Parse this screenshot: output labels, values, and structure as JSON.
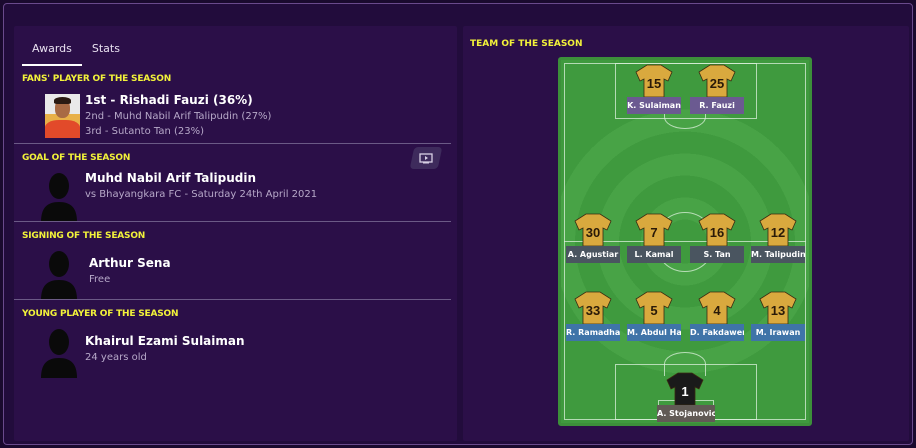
{
  "tabs": [
    {
      "label": "Awards",
      "active": true
    },
    {
      "label": "Stats",
      "active": false
    }
  ],
  "fans": {
    "title": "FANS' PLAYER OF THE SEASON",
    "first": "1st - Rishadi Fauzi (36%)",
    "second": "2nd - Muhd Nabil Arif Talipudin (27%)",
    "third": "3rd - Sutanto Tan (23%)"
  },
  "goal": {
    "title": "GOAL OF THE SEASON",
    "player": "Muhd Nabil Arif Talipudin",
    "detail": "vs Bhayangkara FC - Saturday 24th April 2021",
    "icon": "tv-play-icon"
  },
  "signing": {
    "title": "SIGNING OF THE SEASON",
    "player": "Arthur Sena",
    "detail": "Free"
  },
  "young": {
    "title": "YOUNG PLAYER OF THE SEASON",
    "player": "Khairul Ezami Sulaiman",
    "detail": "24 years old"
  },
  "team": {
    "title": "TEAM OF THE SEASON",
    "colors": {
      "striker": "#6b5a91",
      "midfield": "#4a5560",
      "defence": "#3f74a8",
      "goalkeeper": "#615a55",
      "shirt": "#d9a93e",
      "gk_shirt": "#1a1a1a"
    },
    "players": [
      {
        "number": "15",
        "name": "K. Sulaiman",
        "line": "striker"
      },
      {
        "number": "25",
        "name": "R. Fauzi",
        "line": "striker"
      },
      {
        "number": "30",
        "name": "A. Agustiar",
        "line": "midfield"
      },
      {
        "number": "7",
        "name": "L. Kamal",
        "line": "midfield"
      },
      {
        "number": "16",
        "name": "S. Tan",
        "line": "midfield"
      },
      {
        "number": "12",
        "name": "M. Talipudin",
        "line": "midfield"
      },
      {
        "number": "33",
        "name": "R. Ramadhan",
        "line": "defence"
      },
      {
        "number": "5",
        "name": "M. Abdul Halim",
        "line": "defence"
      },
      {
        "number": "4",
        "name": "D. Fakdawer",
        "line": "defence"
      },
      {
        "number": "13",
        "name": "M. Irawan",
        "line": "defence"
      },
      {
        "number": "1",
        "name": "A. Stojanovic",
        "line": "goalkeeper"
      }
    ]
  }
}
